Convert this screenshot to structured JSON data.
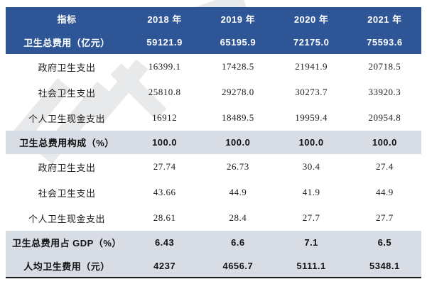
{
  "colors": {
    "header_blue": "#2e5596",
    "band_gray_blue": "#d8dce5",
    "bottom_border": "#1a1a1a",
    "watermark_gray": "#e7e9eb"
  },
  "table": {
    "columns": [
      "指标",
      "2018 年",
      "2019 年",
      "2020 年",
      "2021 年"
    ],
    "total_row": {
      "label": "卫生总费用（亿元）",
      "values": [
        "59121.9",
        "65195.9",
        "72175.0",
        "75593.6"
      ]
    },
    "rows": [
      {
        "label": "政府卫生支出",
        "values": [
          "16399.1",
          "17428.5",
          "21941.9",
          "20718.5"
        ],
        "style": "plain"
      },
      {
        "label": "社会卫生支出",
        "values": [
          "25810.8",
          "29278.0",
          "30273.7",
          "33920.3"
        ],
        "style": "plain"
      },
      {
        "label": "个人卫生现金支出",
        "values": [
          "16912",
          "18489.5",
          "19959.4",
          "20954.8"
        ],
        "style": "plain"
      },
      {
        "label": "卫生总费用构成（%）",
        "values": [
          "100.0",
          "100.0",
          "100.0",
          "100.0"
        ],
        "style": "band"
      },
      {
        "label": "政府卫生支出",
        "values": [
          "27.74",
          "26.73",
          "30.4",
          "27.4"
        ],
        "style": "plain"
      },
      {
        "label": "社会卫生支出",
        "values": [
          "43.66",
          "44.9",
          "41.9",
          "44.9"
        ],
        "style": "plain"
      },
      {
        "label": "个人卫生现金支出",
        "values": [
          "28.61",
          "28.4",
          "27.7",
          "27.7"
        ],
        "style": "plain"
      },
      {
        "label": "卫生总费用占 GDP（%）",
        "values": [
          "6.43",
          "6.6",
          "7.1",
          "6.5"
        ],
        "style": "band"
      },
      {
        "label": "人均卫生费用（元）",
        "values": [
          "4237",
          "4656.7",
          "5111.1",
          "5348.1"
        ],
        "style": "band"
      }
    ]
  }
}
